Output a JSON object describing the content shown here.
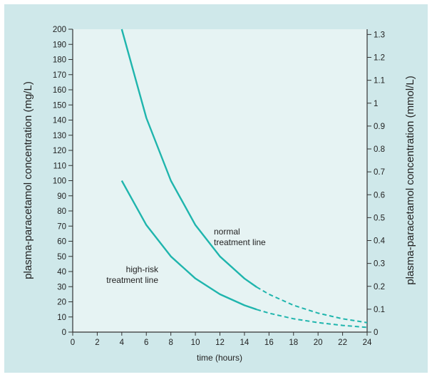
{
  "chart_data": {
    "type": "line",
    "xlabel": "time (hours)",
    "ylabel": "plasma-paracetamol concentration (mg/L)",
    "y2label": "plasma-paracetamol concentration (mmol/L)",
    "xlim": [
      0,
      24
    ],
    "ylim": [
      0,
      200
    ],
    "y2lim": [
      0,
      1.323
    ],
    "x_ticks": [
      "0",
      "2",
      "4",
      "6",
      "8",
      "10",
      "12",
      "14",
      "16",
      "18",
      "20",
      "22",
      "24"
    ],
    "y_ticks": [
      "0",
      "10",
      "20",
      "30",
      "40",
      "50",
      "60",
      "70",
      "80",
      "90",
      "100",
      "110",
      "120",
      "130",
      "140",
      "150",
      "160",
      "170",
      "180",
      "190",
      "200"
    ],
    "y2_ticks": [
      "0",
      "0.1",
      "0.2",
      "0.3",
      "0.4",
      "0.5",
      "0.6",
      "0.7",
      "0.8",
      "0.9",
      "1",
      "1.1",
      "1.2",
      "1.3"
    ],
    "grid": false,
    "series": [
      {
        "name": "normal treatment line",
        "x": [
          4,
          6,
          8,
          10,
          12,
          14,
          15,
          16,
          18,
          20,
          22,
          24
        ],
        "y": [
          200,
          141.4,
          100,
          70.7,
          50,
          35.4,
          29.7,
          25,
          17.7,
          12.5,
          8.8,
          6.25
        ],
        "solid_until": 15,
        "color": "#1fb5ad"
      },
      {
        "name": "high-risk treatment line",
        "x": [
          4,
          6,
          8,
          10,
          12,
          14,
          15,
          16,
          18,
          20,
          22,
          24
        ],
        "y": [
          100,
          70.7,
          50,
          35.4,
          25,
          17.7,
          14.9,
          12.5,
          8.8,
          6.25,
          4.4,
          3.1
        ],
        "solid_until": 15,
        "color": "#1fb5ad"
      }
    ],
    "annotations": {
      "normal": [
        "normal",
        "treatment line"
      ],
      "high_risk": [
        "high-risk",
        "treatment line"
      ]
    }
  },
  "colors": {
    "background": "#cfe8ea",
    "plot_area": "#e6f3f3",
    "line": "#1fb5ad",
    "axis": "#333333"
  }
}
